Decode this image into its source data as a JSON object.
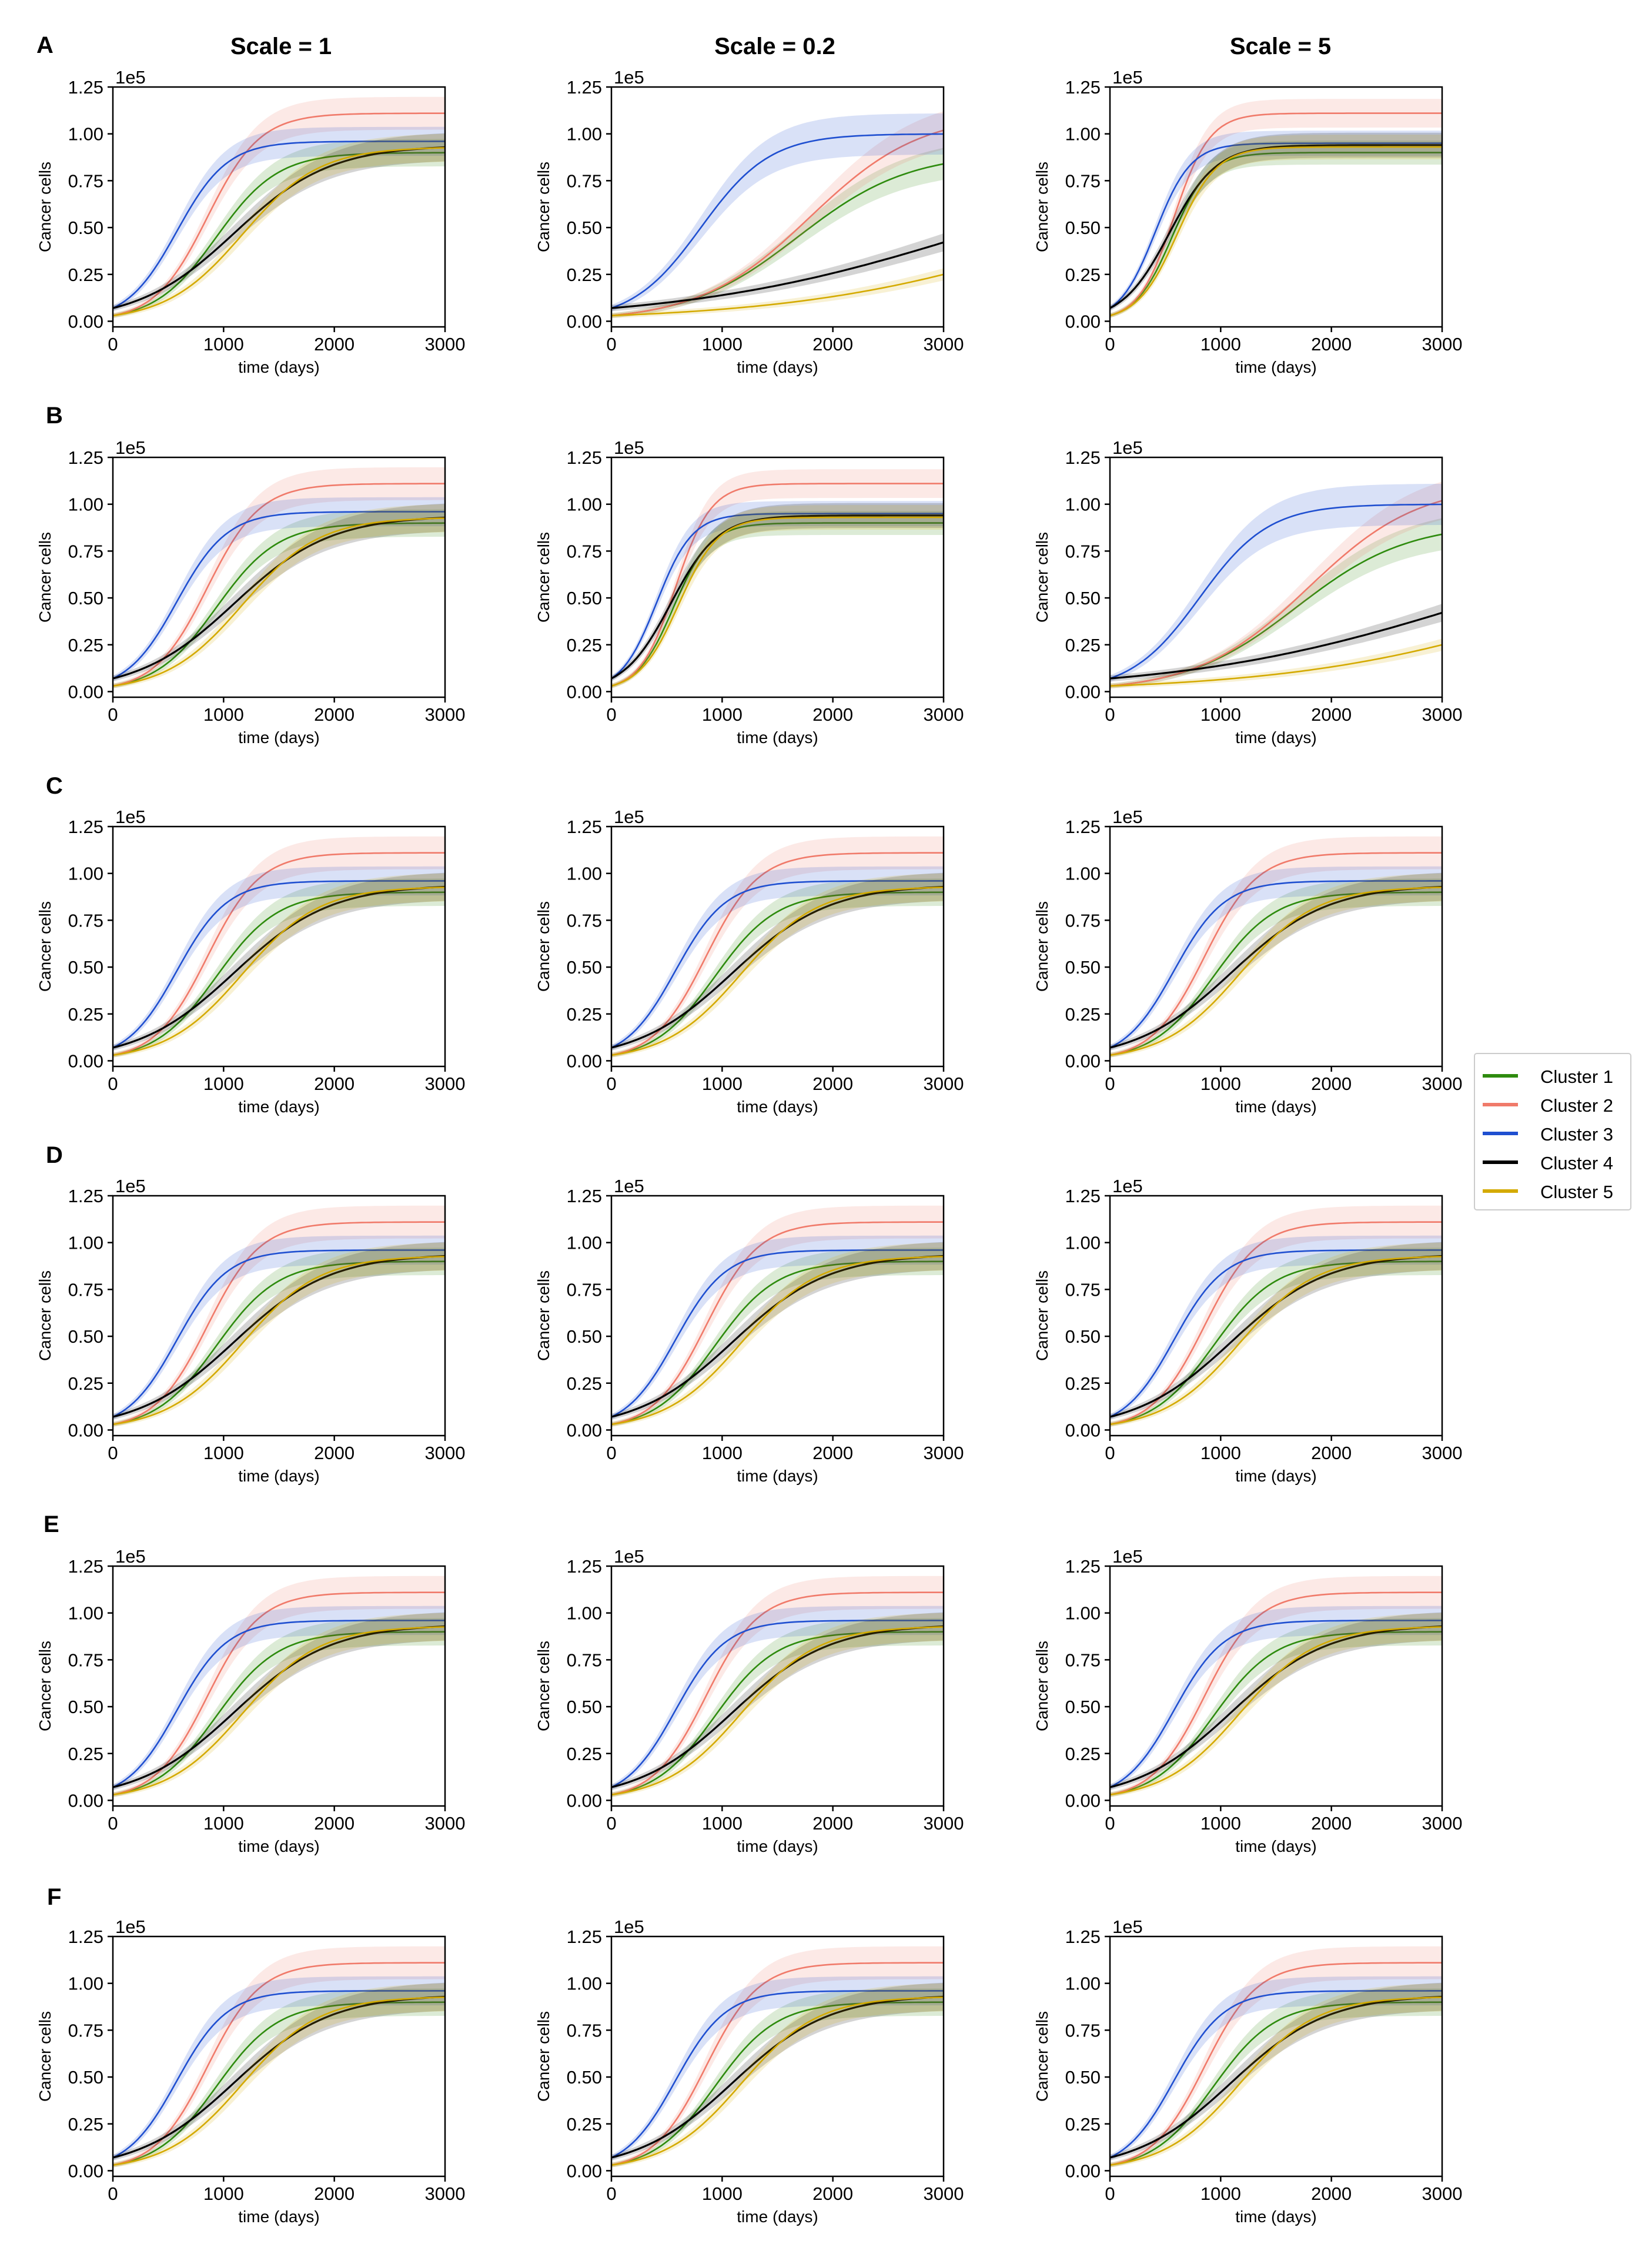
{
  "figure": {
    "column_titles": [
      "Scale = 1",
      "Scale = 0.2",
      "Scale = 5"
    ],
    "row_labels": [
      "A",
      "B",
      "C",
      "D",
      "E",
      "F"
    ],
    "legend": [
      {
        "label": "Cluster 1",
        "color": "#2e8b0e"
      },
      {
        "label": "Cluster 2",
        "color": "#f07a6a"
      },
      {
        "label": "Cluster 3",
        "color": "#1f4fd0"
      },
      {
        "label": "Cluster 4",
        "color": "#000000"
      },
      {
        "label": "Cluster 5",
        "color": "#d4aa00"
      }
    ]
  },
  "chart_data": {
    "type": "line",
    "xlabel": "time (days)",
    "ylabel": "Cancer cells",
    "y_offset_label": "1e5",
    "x_ticks": [
      0,
      1000,
      2000,
      3000
    ],
    "x_tick_labels": [
      "0",
      "1000",
      "2000",
      "3000"
    ],
    "y_ticks": [
      0,
      0.25,
      0.5,
      0.75,
      1.0,
      1.25
    ],
    "y_tick_labels": [
      "0.00",
      "0.25",
      "0.50",
      "0.75",
      "1.00",
      "1.25"
    ],
    "x_range": [
      0,
      3000
    ],
    "y_range": [
      -0.03,
      1.25
    ],
    "panels": [
      {
        "row": "A",
        "col": 0,
        "model": "base"
      },
      {
        "row": "A",
        "col": 1,
        "model": "slow"
      },
      {
        "row": "A",
        "col": 2,
        "model": "fast"
      },
      {
        "row": "B",
        "col": 0,
        "model": "base"
      },
      {
        "row": "B",
        "col": 1,
        "model": "fast"
      },
      {
        "row": "B",
        "col": 2,
        "model": "slow"
      },
      {
        "row": "C",
        "col": 0,
        "model": "base"
      },
      {
        "row": "C",
        "col": 1,
        "model": "base"
      },
      {
        "row": "C",
        "col": 2,
        "model": "base"
      },
      {
        "row": "D",
        "col": 0,
        "model": "base"
      },
      {
        "row": "D",
        "col": 1,
        "model": "base"
      },
      {
        "row": "D",
        "col": 2,
        "model": "base"
      },
      {
        "row": "E",
        "col": 0,
        "model": "base"
      },
      {
        "row": "E",
        "col": 1,
        "model": "base"
      },
      {
        "row": "E",
        "col": 2,
        "model": "base"
      },
      {
        "row": "F",
        "col": 0,
        "model": "base"
      },
      {
        "row": "F",
        "col": 1,
        "model": "base"
      },
      {
        "row": "F",
        "col": 2,
        "model": "base"
      }
    ],
    "models": {
      "base": [
        {
          "name": "Cluster 1",
          "x0": 0.03,
          "K": 0.9,
          "r": 0.0036,
          "band": 0.07
        },
        {
          "name": "Cluster 2",
          "x0": 0.03,
          "K": 1.11,
          "r": 0.0042,
          "band": 0.07
        },
        {
          "name": "Cluster 3",
          "x0": 0.07,
          "K": 0.96,
          "r": 0.0044,
          "band": 0.07
        },
        {
          "name": "Cluster 4",
          "x0": 0.07,
          "K": 0.94,
          "r": 0.0023,
          "band": 0.07
        },
        {
          "name": "Cluster 5",
          "x0": 0.03,
          "K": 0.93,
          "r": 0.0029,
          "band": 0.07
        }
      ],
      "slow": [
        {
          "name": "Cluster 1",
          "x0": 0.03,
          "K": 0.9,
          "r": 0.002,
          "band": 0.09
        },
        {
          "name": "Cluster 2",
          "x0": 0.03,
          "K": 1.11,
          "r": 0.002,
          "band": 0.09
        },
        {
          "name": "Cluster 3",
          "x0": 0.07,
          "K": 1.0,
          "r": 0.0032,
          "band": 0.1
        },
        {
          "name": "Cluster 4",
          "x0": 0.07,
          "K": 0.94,
          "r": 0.00077,
          "band": 0.09
        },
        {
          "name": "Cluster 5",
          "x0": 0.03,
          "K": 0.93,
          "r": 0.0008,
          "band": 0.09
        }
      ],
      "fast": [
        {
          "name": "Cluster 1",
          "x0": 0.03,
          "K": 0.9,
          "r": 0.006,
          "band": 0.06
        },
        {
          "name": "Cluster 2",
          "x0": 0.03,
          "K": 1.11,
          "r": 0.0062,
          "band": 0.06
        },
        {
          "name": "Cluster 3",
          "x0": 0.07,
          "K": 0.95,
          "r": 0.0062,
          "band": 0.06
        },
        {
          "name": "Cluster 4",
          "x0": 0.07,
          "K": 0.94,
          "r": 0.0047,
          "band": 0.06
        },
        {
          "name": "Cluster 5",
          "x0": 0.03,
          "K": 0.93,
          "r": 0.0056,
          "band": 0.06
        }
      ]
    }
  }
}
